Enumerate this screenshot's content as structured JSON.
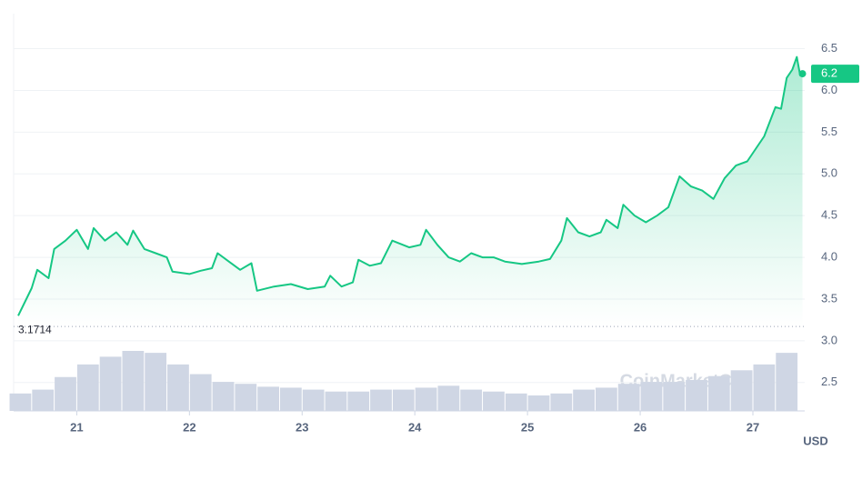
{
  "chart_data": {
    "type": "line",
    "color": "#16c784",
    "x": [
      20.48,
      20.6,
      20.65,
      20.75,
      20.8,
      20.9,
      21.0,
      21.1,
      21.15,
      21.25,
      21.35,
      21.45,
      21.5,
      21.6,
      21.7,
      21.8,
      21.85,
      22.0,
      22.1,
      22.2,
      22.25,
      22.35,
      22.45,
      22.55,
      22.6,
      22.75,
      22.9,
      23.05,
      23.2,
      23.25,
      23.35,
      23.45,
      23.5,
      23.6,
      23.7,
      23.8,
      23.95,
      24.05,
      24.1,
      24.2,
      24.3,
      24.4,
      24.5,
      24.6,
      24.7,
      24.8,
      24.95,
      25.1,
      25.2,
      25.3,
      25.35,
      25.45,
      25.55,
      25.65,
      25.7,
      25.8,
      25.85,
      25.95,
      26.05,
      26.15,
      26.25,
      26.35,
      26.45,
      26.55,
      26.65,
      26.75,
      26.85,
      26.95,
      27.1,
      27.2,
      27.25,
      27.3,
      27.35,
      27.39,
      27.42,
      27.44
    ],
    "values": [
      3.3,
      3.63,
      3.85,
      3.75,
      4.1,
      4.2,
      4.33,
      4.1,
      4.35,
      4.2,
      4.3,
      4.15,
      4.32,
      4.1,
      4.05,
      4.0,
      3.83,
      3.8,
      3.84,
      3.87,
      4.05,
      3.95,
      3.85,
      3.93,
      3.6,
      3.65,
      3.68,
      3.62,
      3.65,
      3.78,
      3.65,
      3.7,
      3.97,
      3.9,
      3.93,
      4.2,
      4.12,
      4.15,
      4.33,
      4.15,
      4.0,
      3.95,
      4.05,
      4.0,
      4.0,
      3.95,
      3.92,
      3.95,
      3.98,
      4.2,
      4.47,
      4.3,
      4.25,
      4.3,
      4.45,
      4.35,
      4.63,
      4.5,
      4.42,
      4.5,
      4.6,
      4.97,
      4.85,
      4.8,
      4.7,
      4.95,
      5.1,
      5.15,
      5.45,
      5.8,
      5.78,
      6.15,
      6.25,
      6.4,
      6.18,
      6.2
    ],
    "xlim": [
      20.44,
      27.46
    ],
    "ylim": [
      2.16,
      6.92
    ],
    "xticks": [
      21,
      22,
      23,
      24,
      25,
      26,
      27
    ],
    "yticks": [
      2.5,
      {
        "value": 3,
        "label": "3.0"
      },
      3.5,
      {
        "value": 4,
        "label": "4.0"
      },
      4.5,
      {
        "value": 5,
        "label": "5.0"
      },
      5.5,
      {
        "value": 6,
        "label": "6.0"
      },
      6.5
    ],
    "reference": 3.1714,
    "y_unit": "USD",
    "watermark": "CoinMarketCap",
    "volume": {
      "color": "#cfd6e4",
      "x": [
        20.5,
        20.7,
        20.9,
        21.1,
        21.3,
        21.5,
        21.7,
        21.9,
        22.1,
        22.3,
        22.5,
        22.7,
        22.9,
        23.1,
        23.3,
        23.5,
        23.7,
        23.9,
        24.1,
        24.3,
        24.5,
        24.7,
        24.9,
        25.1,
        25.3,
        25.5,
        25.7,
        25.9,
        26.1,
        26.3,
        26.5,
        26.7,
        26.9,
        27.1,
        27.3
      ],
      "values": [
        18,
        22,
        35,
        48,
        56,
        62,
        60,
        48,
        38,
        30,
        28,
        25,
        24,
        22,
        20,
        20,
        22,
        22,
        24,
        26,
        22,
        20,
        18,
        16,
        18,
        22,
        24,
        28,
        30,
        30,
        32,
        36,
        42,
        48,
        60
      ]
    }
  }
}
